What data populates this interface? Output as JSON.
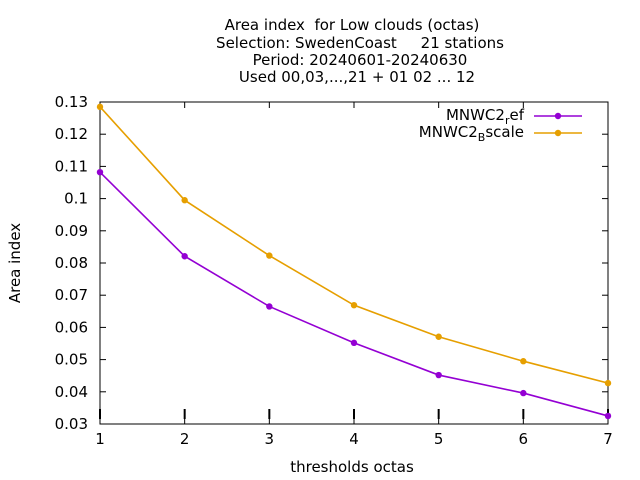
{
  "chart_data": {
    "type": "line",
    "title_lines": [
      "Area index  for Low clouds (octas)",
      "Selection: SwedenCoast     21 stations",
      "Period: 20240601-20240630",
      "Used 00,03,...,21 + 01 02 ... 12"
    ],
    "xlabel": "thresholds octas",
    "ylabel": "Area index",
    "x": [
      1,
      2,
      3,
      4,
      5,
      6,
      7
    ],
    "xticks": [
      "1",
      "2",
      "3",
      "4",
      "5",
      "6",
      "7"
    ],
    "yticks": [
      "0.03",
      "0.04",
      "0.05",
      "0.06",
      "0.07",
      "0.08",
      "0.09",
      "0.1",
      "0.11",
      "0.12",
      "0.13"
    ],
    "xlim": [
      1,
      7
    ],
    "ylim": [
      0.03,
      0.13
    ],
    "legend_position": "top-right",
    "series": [
      {
        "name_main": "MNWC2",
        "name_sub": "r",
        "name_rest": "ef",
        "color": "#9400d3",
        "values": [
          0.1082,
          0.0821,
          0.0665,
          0.0552,
          0.0452,
          0.0396,
          0.0325
        ]
      },
      {
        "name_main": "MNWC2",
        "name_sub": "B",
        "name_rest": "scale",
        "color": "#e69f00",
        "values": [
          0.1285,
          0.0995,
          0.0823,
          0.0669,
          0.0571,
          0.0495,
          0.0427
        ]
      }
    ]
  }
}
